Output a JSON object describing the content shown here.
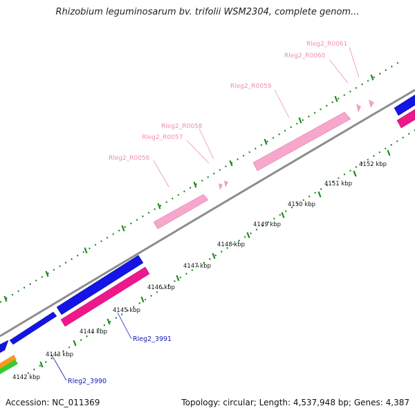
{
  "title": "Rhizobium leguminosarum bv. trifolii WSM2304, complete genom...",
  "footer": {
    "accession": "Accession: NC_011369",
    "summary": "Topology: circular; Length: 4,537,948 bp; Genes: 4,387"
  },
  "ticks": [
    "4142 kbp",
    "4143 kbp",
    "4144 kbp",
    "4145 kbp",
    "4146 kbp",
    "4147 kbp",
    "4148 kbp",
    "4149 kbp",
    "4150 kbp",
    "4151 kbp",
    "4152 kbp"
  ],
  "rna_labels": [
    "Rleg2_R0056",
    "Rleg2_R0057",
    "Rleg2_R0058",
    "Rleg2_R0059",
    "Rleg2_R0060",
    "Rleg2_R0061"
  ],
  "gene_labels": [
    "Rleg2_3991",
    "Rleg2_3990"
  ],
  "colors": {
    "backbone": "#8c8c8c",
    "cds": "#1414e6",
    "rrna": "#f7a6cc",
    "trna": "#f0a0c8",
    "pink_gene": "#f0168c",
    "tick_green": "#1a8a1a",
    "orange_gene": "#f39a1c",
    "green_gene": "#33cc33"
  }
}
